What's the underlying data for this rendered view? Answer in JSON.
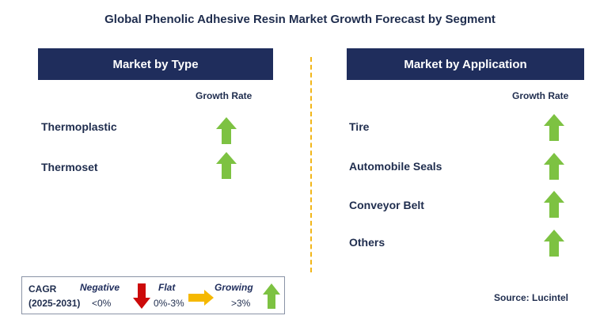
{
  "title": "Global Phenolic Adhesive Resin Market Growth Forecast by Segment",
  "left_panel": {
    "header": "Market by Type",
    "growth_label": "Growth Rate",
    "items": [
      {
        "label": "Thermoplastic",
        "trend": "growing"
      },
      {
        "label": "Thermoset",
        "trend": "growing"
      }
    ]
  },
  "right_panel": {
    "header": "Market by Application",
    "growth_label": "Growth Rate",
    "items": [
      {
        "label": "Tire",
        "trend": "growing"
      },
      {
        "label": "Automobile Seals",
        "trend": "growing"
      },
      {
        "label": "Conveyor Belt",
        "trend": "growing"
      },
      {
        "label": "Others",
        "trend": "growing"
      }
    ]
  },
  "legend": {
    "cagr": "CAGR",
    "period": "(2025-2031)",
    "negative_label": "Negative",
    "negative_range": "<0%",
    "flat_label": "Flat",
    "flat_range": "0%-3%",
    "growing_label": "Growing",
    "growing_range": ">3%"
  },
  "source": "Source: Lucintel",
  "colors": {
    "header_bg": "#1f2d5c",
    "growing_arrow": "#7dc242",
    "negative_arrow": "#cc0a0a",
    "flat_arrow": "#f5b800",
    "divider": "#f2b619"
  }
}
